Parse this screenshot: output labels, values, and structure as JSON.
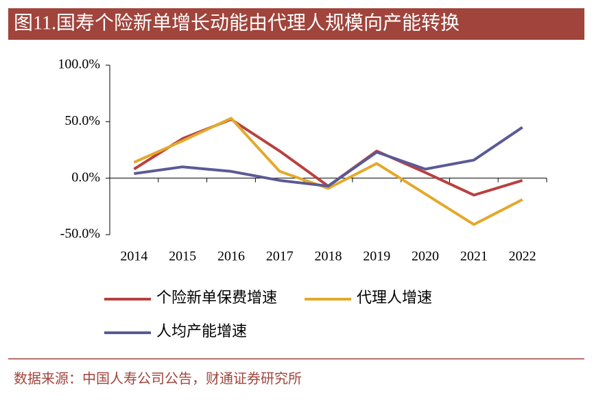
{
  "chart_data": {
    "type": "line",
    "title": "图11.国寿个险新单增长动能由代理人规模向产能转换",
    "source": "数据来源：中国人寿公司公告，财通证券研究所",
    "categories": [
      "2014",
      "2015",
      "2016",
      "2017",
      "2018",
      "2019",
      "2020",
      "2021",
      "2022"
    ],
    "series": [
      {
        "name": "个险新单保费增速",
        "color": "#b9403f",
        "values": [
          8,
          35,
          52,
          24,
          -7,
          24,
          5,
          -15,
          -2
        ]
      },
      {
        "name": "代理人增速",
        "color": "#e3a92a",
        "values": [
          14,
          33,
          53,
          6,
          -9,
          13,
          -14,
          -41,
          -19
        ]
      },
      {
        "name": "人均产能增速",
        "color": "#5a5a96",
        "values": [
          4,
          10,
          6,
          -2,
          -7,
          23,
          8,
          16,
          45
        ]
      }
    ],
    "ylim": [
      -50,
      100
    ],
    "yticks": [
      {
        "value": -50,
        "label": "-50.0%"
      },
      {
        "value": 0,
        "label": "0.0%"
      },
      {
        "value": 50,
        "label": "50.0%"
      },
      {
        "value": 100,
        "label": "100.0%"
      }
    ],
    "grid": false
  }
}
